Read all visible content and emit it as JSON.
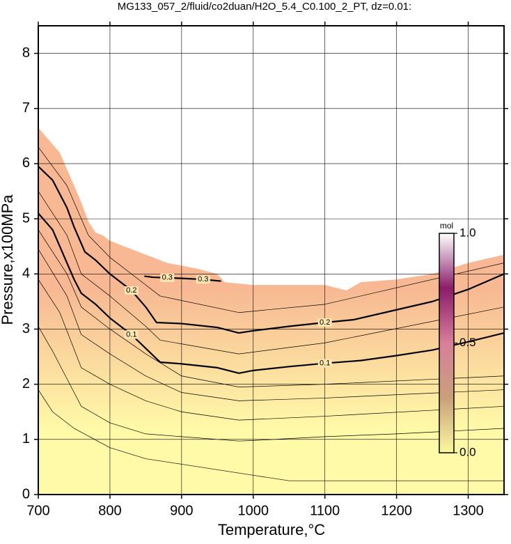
{
  "chart_data": {
    "type": "contour",
    "title": "MG133_057_2/fluid/co2duan/H2O_5.4_C0.100_2_PT, dz=0.01:",
    "x_label": "Temperature,°C",
    "y_label": "Pressure,x100MPa",
    "xlim": [
      700,
      1350
    ],
    "ylim": [
      0,
      8.5
    ],
    "xticks": [
      700,
      800,
      900,
      1000,
      1100,
      1200,
      1300
    ],
    "yticks": [
      0,
      1,
      2,
      3,
      4,
      5,
      6,
      7,
      8
    ],
    "grid": true,
    "fill_colors": [
      "#fffaa8",
      "#f7b893"
    ],
    "boundary": {
      "x": [
        700,
        710,
        720,
        730,
        740,
        750,
        760,
        770,
        780,
        790,
        800,
        820,
        840,
        860,
        880,
        900,
        920,
        950,
        960,
        1000,
        1050,
        1100,
        1130,
        1150,
        1200,
        1250,
        1300,
        1350
      ],
      "y": [
        6.65,
        6.5,
        6.35,
        6.2,
        5.9,
        5.6,
        5.3,
        4.95,
        4.75,
        4.7,
        4.6,
        4.5,
        4.4,
        4.3,
        4.2,
        4.15,
        4.1,
        4.0,
        3.85,
        3.8,
        3.8,
        3.8,
        3.7,
        3.85,
        3.9,
        4.0,
        4.2,
        4.35
      ]
    },
    "thin_lines": [
      {
        "x": [
          700,
          720,
          750,
          800,
          850,
          900,
          1000,
          1050,
          1350
        ],
        "y": [
          1.9,
          1.5,
          1.2,
          0.85,
          0.65,
          0.55,
          0.35,
          0.25,
          0.25
        ]
      },
      {
        "x": [
          700,
          720,
          740,
          760,
          800,
          850,
          900,
          980,
          1000,
          1100,
          1200,
          1350
        ],
        "y": [
          3.05,
          2.6,
          2.1,
          1.6,
          1.3,
          1.1,
          1.05,
          0.97,
          0.98,
          1.05,
          1.1,
          1.2
        ]
      },
      {
        "x": [
          700,
          730,
          760,
          800,
          850,
          900,
          980,
          1100,
          1350
        ],
        "y": [
          3.9,
          3.3,
          2.3,
          2.0,
          1.7,
          1.5,
          1.35,
          1.42,
          1.6
        ]
      },
      {
        "x": [
          700,
          740,
          760,
          800,
          850,
          900,
          980,
          1100,
          1350
        ],
        "y": [
          4.45,
          3.6,
          2.9,
          2.55,
          2.15,
          1.85,
          1.7,
          1.75,
          1.9
        ]
      },
      {
        "x": [
          700,
          740,
          760,
          800,
          850,
          900,
          980,
          1100,
          1350
        ],
        "y": [
          4.8,
          4.0,
          3.4,
          3.0,
          2.55,
          2.15,
          1.95,
          2.0,
          2.15
        ]
      },
      {
        "x": [
          700,
          740,
          760,
          800,
          850,
          870,
          980,
          1100,
          1350
        ],
        "y": [
          5.5,
          4.7,
          4.0,
          3.6,
          3.05,
          2.8,
          2.55,
          2.75,
          3.4
        ]
      },
      {
        "x": [
          700,
          740,
          770,
          800,
          850,
          870,
          980,
          1100,
          1350
        ],
        "y": [
          6.3,
          5.6,
          4.7,
          4.3,
          3.8,
          3.6,
          3.3,
          3.45,
          4.2
        ]
      }
    ],
    "contours": [
      {
        "level": 0.1,
        "x": [
          700,
          720,
          740,
          750,
          760,
          780,
          800,
          830,
          850,
          870,
          900,
          950,
          980,
          1000,
          1050,
          1100,
          1150,
          1200,
          1250,
          1300,
          1350
        ],
        "y": [
          5.1,
          4.8,
          4.2,
          3.9,
          3.65,
          3.45,
          3.2,
          2.9,
          2.65,
          2.4,
          2.37,
          2.3,
          2.2,
          2.25,
          2.32,
          2.38,
          2.43,
          2.52,
          2.62,
          2.77,
          2.93
        ]
      },
      {
        "level": 0.2,
        "x": [
          700,
          720,
          740,
          750,
          765,
          780,
          800,
          830,
          850,
          865,
          900,
          950,
          980,
          1000,
          1050,
          1100,
          1140,
          1200,
          1250,
          1300,
          1350
        ],
        "y": [
          5.95,
          5.7,
          5.2,
          4.85,
          4.4,
          4.25,
          4.0,
          3.7,
          3.4,
          3.12,
          3.1,
          3.03,
          2.93,
          2.97,
          3.05,
          3.12,
          3.17,
          3.35,
          3.5,
          3.72,
          4.0
        ]
      },
      {
        "level": 0.3,
        "x": [
          848,
          860,
          880,
          900,
          930,
          955
        ],
        "y": [
          3.96,
          3.94,
          3.93,
          3.92,
          3.9,
          3.87
        ]
      }
    ],
    "colorbar": {
      "label": "mol",
      "lim": [
        0,
        1
      ],
      "ticks": [
        {
          "value": 0,
          "label": "0.0"
        },
        0.5,
        {
          "value": 1,
          "label": "1.0"
        }
      ],
      "colors": [
        "#fbf8a0",
        "#c9a07a",
        "#d87f9a",
        "#8a1c6a",
        "#ffffff"
      ]
    }
  }
}
